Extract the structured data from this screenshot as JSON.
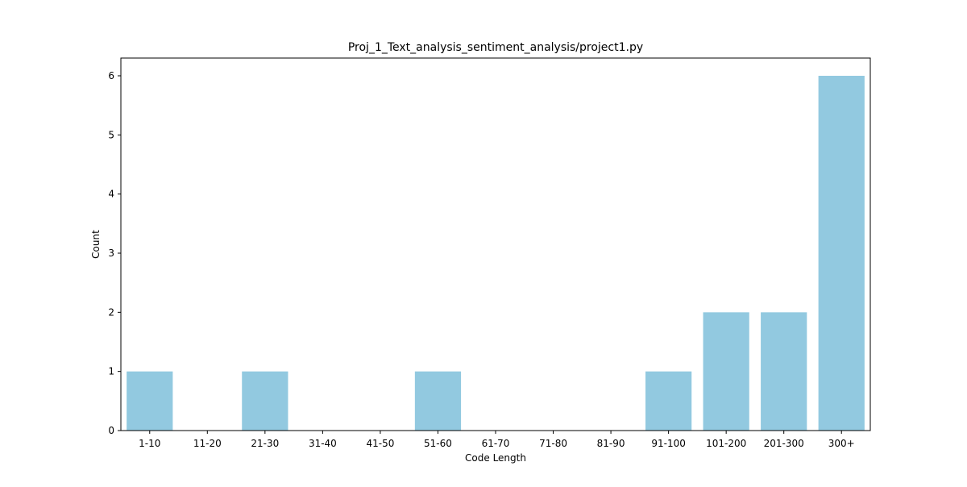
{
  "chart_data": {
    "type": "bar",
    "title": "Proj_1_Text_analysis_sentiment_analysis/project1.py",
    "xlabel": "Code Length",
    "ylabel": "Count",
    "categories": [
      "1-10",
      "11-20",
      "21-30",
      "31-40",
      "41-50",
      "51-60",
      "61-70",
      "71-80",
      "81-90",
      "91-100",
      "101-200",
      "201-300",
      "300+"
    ],
    "values": [
      1,
      0,
      1,
      0,
      0,
      1,
      0,
      0,
      0,
      1,
      2,
      2,
      6
    ],
    "ylim": [
      0,
      6.3
    ],
    "yticks": [
      0,
      1,
      2,
      3,
      4,
      5,
      6
    ],
    "bar_color": "#92C9E0",
    "grid": false,
    "legend": "none"
  }
}
